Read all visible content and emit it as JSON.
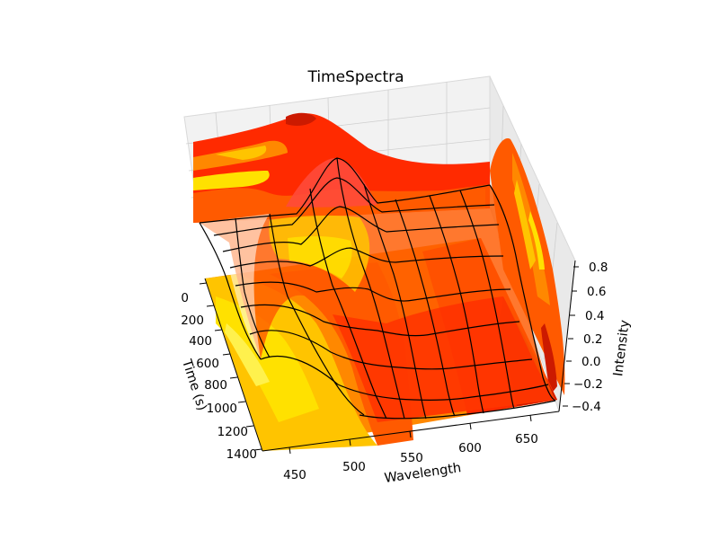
{
  "chart_data": {
    "type": "surface",
    "title": "TimeSpectra",
    "xlabel": "Wavelength",
    "ylabel": "Time (s)",
    "zlabel": "Intensity",
    "x_ticks": [
      "450",
      "500",
      "550",
      "600",
      "650"
    ],
    "y_ticks": [
      "0",
      "200",
      "400",
      "600",
      "800",
      "1000",
      "1200",
      "1400"
    ],
    "z_ticks": [
      "0.8",
      "0.6",
      "0.4",
      "0.2",
      "0.0",
      "−0.2",
      "−0.4"
    ],
    "xlim": [
      420,
      680
    ],
    "ylim": [
      0,
      1450
    ],
    "zlim": [
      -0.45,
      0.85
    ],
    "surface": "wireframe surface with filled contour projections on the bottom, back and side panes",
    "wavelength_grid": [
      430,
      455,
      480,
      505,
      530,
      555,
      580,
      605,
      630,
      655,
      675
    ],
    "time_grid": [
      0,
      150,
      300,
      450,
      600,
      750,
      900,
      1050,
      1200,
      1350,
      1450
    ],
    "features": {
      "peak_wavelength": 550,
      "peak_time": 0,
      "peak_intensity": 0.78,
      "trough_intensity": -0.4,
      "trough_time": 1450
    },
    "colormap": [
      "#cc1a00",
      "#ff2a00",
      "#ff5a00",
      "#ff8800",
      "#ffc400",
      "#ffe100",
      "#fff14d"
    ],
    "grid": true
  }
}
